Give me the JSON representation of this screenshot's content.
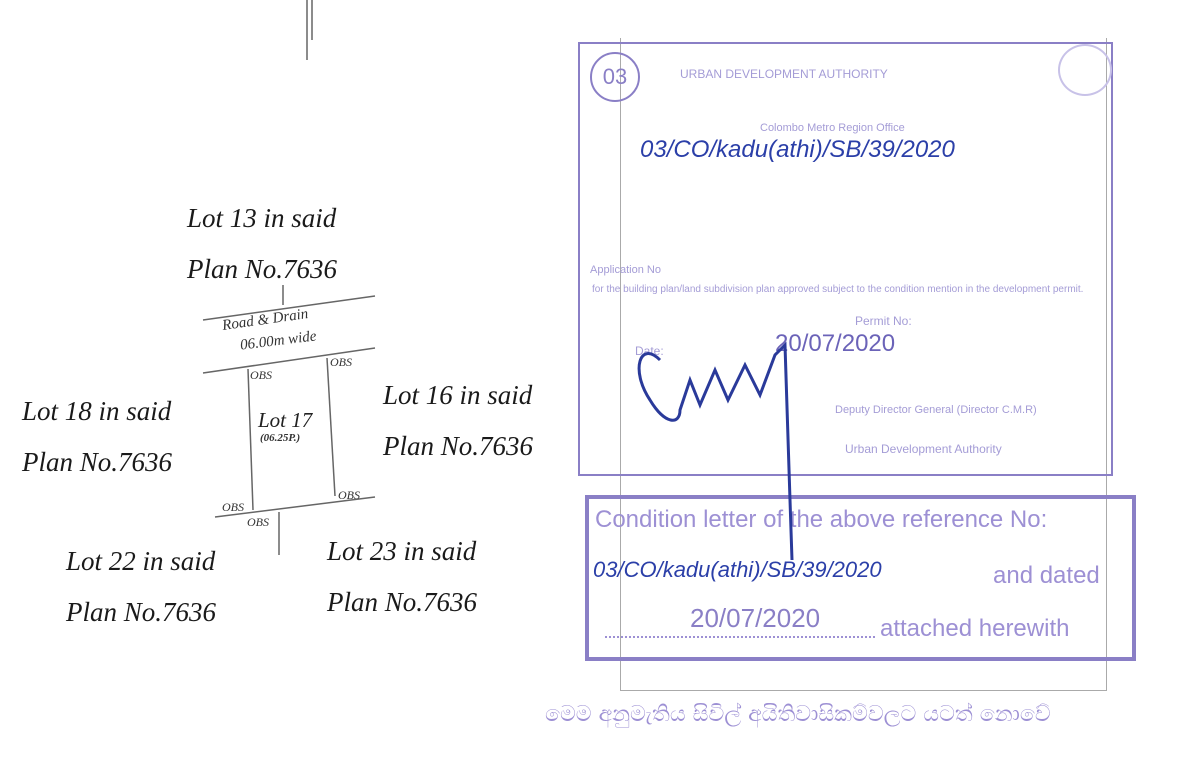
{
  "plan": {
    "lot13": [
      "Lot 13 in said",
      "Plan No.7636"
    ],
    "lot16": [
      "Lot 16 in said",
      "Plan No.7636"
    ],
    "lot18": [
      "Lot 18 in said",
      "Plan No.7636"
    ],
    "lot22": [
      "Lot 22 in said",
      "Plan No.7636"
    ],
    "lot23": [
      "Lot 23 in said",
      "Plan No.7636"
    ],
    "road": [
      "Road & Drain",
      "06.00m wide"
    ],
    "lot17": "Lot 17",
    "lot17_area": "(06.25P.)",
    "obs": "OBS"
  },
  "approval_stamp": {
    "number": "03",
    "authority": "URBAN DEVELOPMENT AUTHORITY",
    "office": "Colombo Metro Region Office",
    "reference_handwritten": "03/CO/kadu(athi)/SB/39/2020",
    "application_label": "Application No",
    "approval_text": "for the building plan/land subdivision plan approved subject to the condition mention in the development permit.",
    "permit_label": "Permit No:",
    "date_label": "Date:",
    "date_handwritten": "20/07/2020",
    "signatory": "Deputy Director General (Director C.M.R)",
    "signatory_org": "Urban Development Authority",
    "colors": {
      "stamp": "#8a7fc6",
      "ink": "#2b3fa8"
    }
  },
  "condition_stamp": {
    "line1": "Condition letter of  the above reference No:",
    "reference_handwritten": "03/CO/kadu(athi)/SB/39/2020",
    "and_dated": "and dated",
    "date_handwritten": "20/07/2020",
    "attached": "attached herewith"
  },
  "footer": "මෙම අනුමැතිය සිවිල් අයිතිවාසිකම්වලට යටත් නොවේ"
}
